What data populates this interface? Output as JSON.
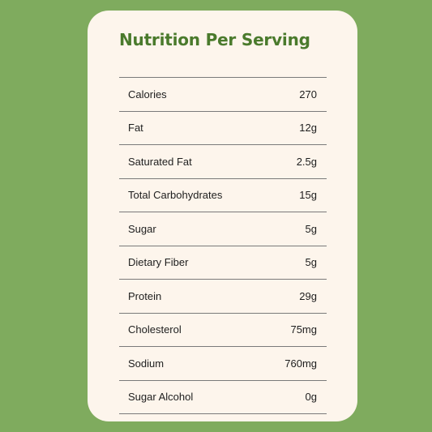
{
  "title": "Nutrition Per Serving",
  "rows": [
    {
      "label": "Calories",
      "value": "270"
    },
    {
      "label": "Fat",
      "value": "12g"
    },
    {
      "label": "Saturated Fat",
      "value": "2.5g"
    },
    {
      "label": "Total Carbohydrates",
      "value": "15g"
    },
    {
      "label": "Sugar",
      "value": "5g"
    },
    {
      "label": "Dietary Fiber",
      "value": "5g"
    },
    {
      "label": "Protein",
      "value": "29g"
    },
    {
      "label": "Cholesterol",
      "value": "75mg"
    },
    {
      "label": "Sodium",
      "value": "760mg"
    },
    {
      "label": "Sugar Alcohol",
      "value": "0g"
    }
  ],
  "colors": {
    "background": "#7fab5e",
    "card": "#fdf5ec",
    "title": "#4a7a2c"
  }
}
